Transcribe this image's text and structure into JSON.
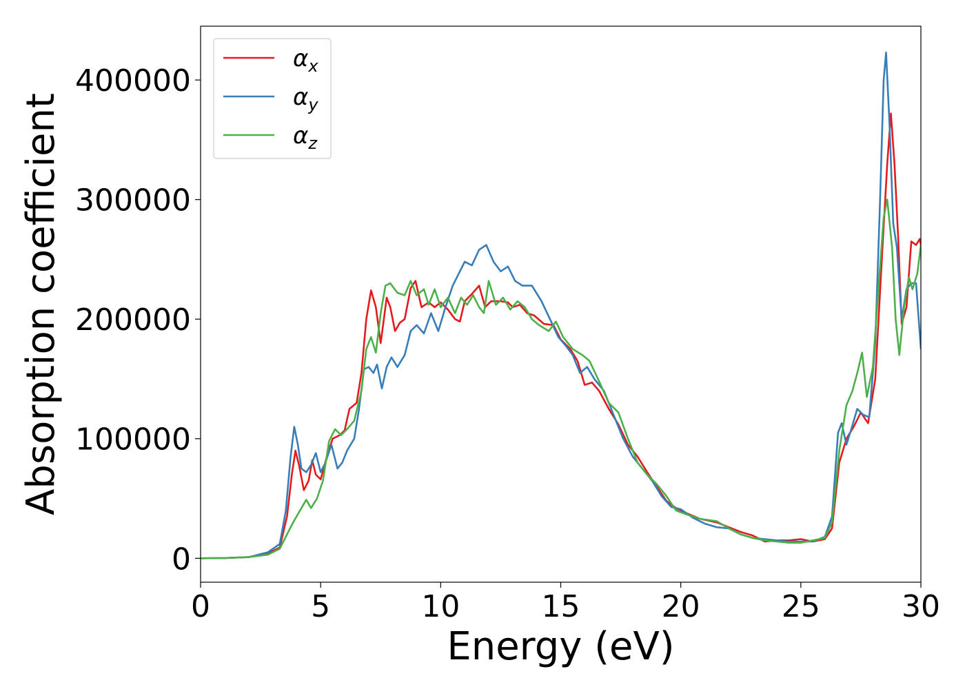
{
  "chart_data": {
    "type": "line",
    "title": "",
    "xlabel": "Energy (eV)",
    "ylabel": "Absorption coefficient",
    "xlim": [
      0,
      30
    ],
    "ylim": [
      -20000,
      445000
    ],
    "xticks": [
      0,
      5,
      10,
      15,
      20,
      25,
      30
    ],
    "yticks": [
      0,
      100000,
      200000,
      300000,
      400000
    ],
    "grid": false,
    "legend_position": "top-left",
    "series": [
      {
        "name": "α",
        "sub": "x",
        "color": "#e41a1c",
        "points": [
          [
            0,
            0
          ],
          [
            1,
            200
          ],
          [
            2,
            1000
          ],
          [
            2.8,
            4000
          ],
          [
            3.3,
            9000
          ],
          [
            3.6,
            35000
          ],
          [
            3.8,
            70000
          ],
          [
            3.95,
            90000
          ],
          [
            4.1,
            78000
          ],
          [
            4.3,
            57000
          ],
          [
            4.5,
            65000
          ],
          [
            4.65,
            82000
          ],
          [
            4.8,
            70000
          ],
          [
            5.0,
            66000
          ],
          [
            5.3,
            88000
          ],
          [
            5.5,
            100000
          ],
          [
            5.8,
            103000
          ],
          [
            6.0,
            107000
          ],
          [
            6.2,
            125000
          ],
          [
            6.5,
            130000
          ],
          [
            6.7,
            155000
          ],
          [
            6.9,
            200000
          ],
          [
            7.1,
            224000
          ],
          [
            7.3,
            210000
          ],
          [
            7.5,
            180000
          ],
          [
            7.75,
            218000
          ],
          [
            7.9,
            210000
          ],
          [
            8.1,
            190000
          ],
          [
            8.3,
            197000
          ],
          [
            8.5,
            200000
          ],
          [
            8.75,
            226000
          ],
          [
            8.95,
            232000
          ],
          [
            9.2,
            210000
          ],
          [
            9.5,
            214000
          ],
          [
            9.75,
            210000
          ],
          [
            10.0,
            214000
          ],
          [
            10.3,
            208000
          ],
          [
            10.6,
            200000
          ],
          [
            10.8,
            198000
          ],
          [
            11.0,
            215000
          ],
          [
            11.3,
            221000
          ],
          [
            11.6,
            228000
          ],
          [
            11.85,
            210000
          ],
          [
            12.1,
            215000
          ],
          [
            12.5,
            215000
          ],
          [
            12.8,
            214000
          ],
          [
            13.0,
            210000
          ],
          [
            13.3,
            212000
          ],
          [
            13.6,
            205000
          ],
          [
            13.9,
            203000
          ],
          [
            14.3,
            196000
          ],
          [
            14.7,
            195000
          ],
          [
            15.0,
            183000
          ],
          [
            15.4,
            175000
          ],
          [
            15.7,
            165000
          ],
          [
            16.0,
            145000
          ],
          [
            16.3,
            147000
          ],
          [
            16.6,
            140000
          ],
          [
            17.0,
            125000
          ],
          [
            17.4,
            112000
          ],
          [
            17.8,
            95000
          ],
          [
            18.2,
            85000
          ],
          [
            18.6,
            72000
          ],
          [
            19.0,
            60000
          ],
          [
            19.4,
            48000
          ],
          [
            19.8,
            42000
          ],
          [
            20.2,
            38000
          ],
          [
            20.8,
            33000
          ],
          [
            21.5,
            30000
          ],
          [
            22.0,
            26000
          ],
          [
            22.5,
            22000
          ],
          [
            23.0,
            19000
          ],
          [
            23.5,
            14000
          ],
          [
            24.0,
            15000
          ],
          [
            24.5,
            15000
          ],
          [
            25.0,
            16000
          ],
          [
            25.5,
            14000
          ],
          [
            26.0,
            16000
          ],
          [
            26.3,
            25000
          ],
          [
            26.6,
            80000
          ],
          [
            26.9,
            100000
          ],
          [
            27.2,
            110000
          ],
          [
            27.5,
            122000
          ],
          [
            27.8,
            113000
          ],
          [
            28.1,
            150000
          ],
          [
            28.4,
            260000
          ],
          [
            28.6,
            330000
          ],
          [
            28.75,
            372000
          ],
          [
            28.9,
            330000
          ],
          [
            29.05,
            270000
          ],
          [
            29.2,
            196000
          ],
          [
            29.4,
            210000
          ],
          [
            29.6,
            265000
          ],
          [
            29.8,
            262000
          ],
          [
            29.95,
            267000
          ],
          [
            30.0,
            262000
          ]
        ]
      },
      {
        "name": "α",
        "sub": "y",
        "color": "#377eb8",
        "points": [
          [
            0,
            0
          ],
          [
            1,
            200
          ],
          [
            2,
            1000
          ],
          [
            2.8,
            5000
          ],
          [
            3.3,
            12000
          ],
          [
            3.55,
            40000
          ],
          [
            3.75,
            85000
          ],
          [
            3.9,
            110000
          ],
          [
            4.05,
            95000
          ],
          [
            4.2,
            75000
          ],
          [
            4.4,
            72000
          ],
          [
            4.6,
            78000
          ],
          [
            4.8,
            88000
          ],
          [
            5.0,
            72000
          ],
          [
            5.2,
            80000
          ],
          [
            5.45,
            95000
          ],
          [
            5.7,
            75000
          ],
          [
            5.9,
            80000
          ],
          [
            6.1,
            90000
          ],
          [
            6.4,
            100000
          ],
          [
            6.6,
            125000
          ],
          [
            6.8,
            158000
          ],
          [
            7.0,
            160000
          ],
          [
            7.2,
            155000
          ],
          [
            7.35,
            162000
          ],
          [
            7.55,
            142000
          ],
          [
            7.75,
            160000
          ],
          [
            7.95,
            168000
          ],
          [
            8.2,
            160000
          ],
          [
            8.5,
            170000
          ],
          [
            8.75,
            190000
          ],
          [
            9.0,
            195000
          ],
          [
            9.3,
            188000
          ],
          [
            9.6,
            205000
          ],
          [
            9.9,
            190000
          ],
          [
            10.2,
            210000
          ],
          [
            10.5,
            228000
          ],
          [
            10.8,
            240000
          ],
          [
            11.0,
            248000
          ],
          [
            11.3,
            245000
          ],
          [
            11.6,
            258000
          ],
          [
            11.9,
            262000
          ],
          [
            12.2,
            248000
          ],
          [
            12.5,
            240000
          ],
          [
            12.8,
            244000
          ],
          [
            13.1,
            232000
          ],
          [
            13.4,
            228000
          ],
          [
            13.8,
            228000
          ],
          [
            14.2,
            215000
          ],
          [
            14.6,
            198000
          ],
          [
            14.9,
            185000
          ],
          [
            15.2,
            178000
          ],
          [
            15.5,
            170000
          ],
          [
            15.8,
            155000
          ],
          [
            16.1,
            160000
          ],
          [
            16.4,
            150000
          ],
          [
            16.8,
            140000
          ],
          [
            17.2,
            120000
          ],
          [
            17.6,
            100000
          ],
          [
            18.0,
            85000
          ],
          [
            18.4,
            75000
          ],
          [
            18.8,
            65000
          ],
          [
            19.2,
            52000
          ],
          [
            19.6,
            43000
          ],
          [
            20.0,
            41000
          ],
          [
            20.5,
            34000
          ],
          [
            21.0,
            29000
          ],
          [
            21.5,
            26000
          ],
          [
            22.0,
            25000
          ],
          [
            22.5,
            20000
          ],
          [
            23.0,
            17000
          ],
          [
            23.5,
            16000
          ],
          [
            24.0,
            15000
          ],
          [
            24.5,
            14000
          ],
          [
            25.0,
            14000
          ],
          [
            25.5,
            14000
          ],
          [
            26.0,
            18000
          ],
          [
            26.3,
            35000
          ],
          [
            26.55,
            105000
          ],
          [
            26.7,
            113000
          ],
          [
            26.9,
            95000
          ],
          [
            27.1,
            108000
          ],
          [
            27.35,
            125000
          ],
          [
            27.6,
            120000
          ],
          [
            27.85,
            118000
          ],
          [
            28.1,
            180000
          ],
          [
            28.3,
            300000
          ],
          [
            28.45,
            400000
          ],
          [
            28.55,
            423000
          ],
          [
            28.7,
            360000
          ],
          [
            28.85,
            280000
          ],
          [
            29.0,
            260000
          ],
          [
            29.2,
            200000
          ],
          [
            29.4,
            225000
          ],
          [
            29.6,
            230000
          ],
          [
            29.8,
            230000
          ],
          [
            30.0,
            175000
          ]
        ]
      },
      {
        "name": "α",
        "sub": "z",
        "color": "#4daf4a",
        "points": [
          [
            0,
            0
          ],
          [
            1,
            200
          ],
          [
            2,
            1000
          ],
          [
            2.8,
            3000
          ],
          [
            3.3,
            8000
          ],
          [
            3.6,
            20000
          ],
          [
            3.8,
            28000
          ],
          [
            4.0,
            35000
          ],
          [
            4.2,
            42000
          ],
          [
            4.4,
            49000
          ],
          [
            4.6,
            42000
          ],
          [
            4.85,
            50000
          ],
          [
            5.1,
            65000
          ],
          [
            5.35,
            98000
          ],
          [
            5.6,
            108000
          ],
          [
            5.85,
            103000
          ],
          [
            6.1,
            108000
          ],
          [
            6.4,
            115000
          ],
          [
            6.7,
            140000
          ],
          [
            6.9,
            175000
          ],
          [
            7.1,
            185000
          ],
          [
            7.3,
            172000
          ],
          [
            7.5,
            205000
          ],
          [
            7.7,
            228000
          ],
          [
            7.9,
            230000
          ],
          [
            8.2,
            222000
          ],
          [
            8.5,
            220000
          ],
          [
            8.75,
            232000
          ],
          [
            9.0,
            220000
          ],
          [
            9.3,
            225000
          ],
          [
            9.5,
            212000
          ],
          [
            9.75,
            225000
          ],
          [
            10.0,
            210000
          ],
          [
            10.3,
            218000
          ],
          [
            10.6,
            205000
          ],
          [
            10.85,
            218000
          ],
          [
            11.1,
            212000
          ],
          [
            11.35,
            220000
          ],
          [
            11.6,
            210000
          ],
          [
            11.8,
            205000
          ],
          [
            12.0,
            232000
          ],
          [
            12.3,
            212000
          ],
          [
            12.6,
            218000
          ],
          [
            12.9,
            208000
          ],
          [
            13.2,
            215000
          ],
          [
            13.5,
            210000
          ],
          [
            13.8,
            200000
          ],
          [
            14.1,
            195000
          ],
          [
            14.5,
            190000
          ],
          [
            14.8,
            198000
          ],
          [
            15.1,
            185000
          ],
          [
            15.5,
            175000
          ],
          [
            15.9,
            170000
          ],
          [
            16.2,
            165000
          ],
          [
            16.6,
            148000
          ],
          [
            17.0,
            130000
          ],
          [
            17.4,
            122000
          ],
          [
            17.8,
            100000
          ],
          [
            18.2,
            80000
          ],
          [
            18.6,
            70000
          ],
          [
            19.0,
            62000
          ],
          [
            19.4,
            52000
          ],
          [
            19.8,
            40000
          ],
          [
            20.2,
            37000
          ],
          [
            20.8,
            33000
          ],
          [
            21.5,
            31000
          ],
          [
            22.0,
            25000
          ],
          [
            22.5,
            20000
          ],
          [
            23.0,
            17000
          ],
          [
            23.5,
            15000
          ],
          [
            24.0,
            14000
          ],
          [
            24.5,
            13000
          ],
          [
            25.0,
            13000
          ],
          [
            25.5,
            15000
          ],
          [
            26.0,
            17000
          ],
          [
            26.3,
            30000
          ],
          [
            26.6,
            90000
          ],
          [
            26.9,
            128000
          ],
          [
            27.15,
            140000
          ],
          [
            27.35,
            155000
          ],
          [
            27.55,
            172000
          ],
          [
            27.75,
            135000
          ],
          [
            28.0,
            160000
          ],
          [
            28.25,
            230000
          ],
          [
            28.45,
            285000
          ],
          [
            28.6,
            300000
          ],
          [
            28.8,
            260000
          ],
          [
            28.95,
            200000
          ],
          [
            29.1,
            170000
          ],
          [
            29.3,
            210000
          ],
          [
            29.5,
            235000
          ],
          [
            29.65,
            225000
          ],
          [
            29.85,
            238000
          ],
          [
            30.0,
            262000
          ]
        ]
      }
    ]
  }
}
